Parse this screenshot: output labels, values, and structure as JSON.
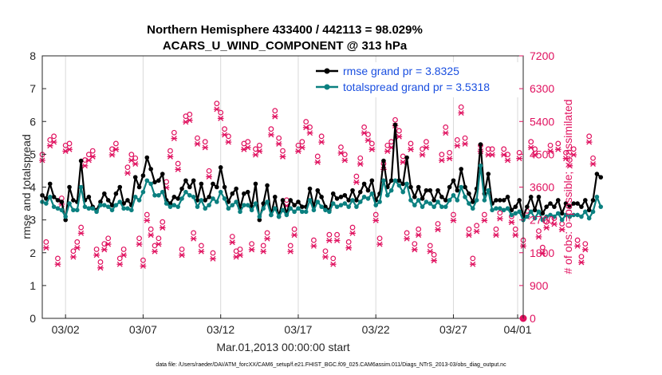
{
  "chart_data": {
    "type": "line",
    "title_line1": "Northern Hemisphere 433400 / 442113 = 98.029%",
    "title_line2": "ACARS_U_WIND_COMPONENT @ 313 hPa",
    "xlabel": "Mar.01,2013 00:00:00 start",
    "ylabel_left": "rmse and totalspread",
    "ylabel_right": "# of obs: o=possible; ×=assimilated",
    "footnote": "data file: /Users/raeder/DAI/ATM_forcXX/CAM6_setup/f.e21.FHIST_BGC.f09_025.CAM6assim.011/Diags_NTrS_2013-03/obs_diag_output.nc",
    "x_range_days": [
      0.5,
      31.5
    ],
    "x_ticks": [
      {
        "day": 2,
        "label": "03/02"
      },
      {
        "day": 7,
        "label": "03/07"
      },
      {
        "day": 12,
        "label": "03/12"
      },
      {
        "day": 17,
        "label": "03/17"
      },
      {
        "day": 22,
        "label": "03/22"
      },
      {
        "day": 27,
        "label": "03/27"
      },
      {
        "day": 32,
        "label": "04/01"
      }
    ],
    "ylim_left": [
      0,
      8
    ],
    "yticks_left": [
      "0",
      "1",
      "2",
      "3",
      "4",
      "5",
      "6",
      "7",
      "8"
    ],
    "ylim_right": [
      0,
      7200
    ],
    "yticks_right": [
      "0",
      "900",
      "1800",
      "2700",
      "3600",
      "4500",
      "5400",
      "6300",
      "7200"
    ],
    "series": [
      {
        "name": "rmse",
        "legend": "rmse grand pr = 3.8325",
        "color": "#000000",
        "x_start_day": 0.5,
        "x_step_day": 0.25,
        "values": [
          3.75,
          3.65,
          4.1,
          3.7,
          3.6,
          3.55,
          3.0,
          4.0,
          3.6,
          3.55,
          4.8,
          3.6,
          3.7,
          3.4,
          3.3,
          3.55,
          3.8,
          3.6,
          3.45,
          3.8,
          4.0,
          3.5,
          3.6,
          3.45,
          4.3,
          4.0,
          4.35,
          4.9,
          4.55,
          4.15,
          4.2,
          4.4,
          3.6,
          3.5,
          3.7,
          3.65,
          3.95,
          4.2,
          4.0,
          4.2,
          3.6,
          4.1,
          3.6,
          3.7,
          4.1,
          4.0,
          4.6,
          4.0,
          3.55,
          3.8,
          3.95,
          3.35,
          3.8,
          3.85,
          3.4,
          4.1,
          3.0,
          3.5,
          4.05,
          3.15,
          3.7,
          3.1,
          3.6,
          3.2,
          3.6,
          3.45,
          3.55,
          3.4,
          3.4,
          3.95,
          3.4,
          3.9,
          3.7,
          3.4,
          3.3,
          3.8,
          3.65,
          3.7,
          3.75,
          3.6,
          3.9,
          3.6,
          3.85,
          4.1,
          3.9,
          4.2,
          3.6,
          3.8,
          4.8,
          4.0,
          4.2,
          5.9,
          4.2,
          4.1,
          4.9,
          4.0,
          3.7,
          4.0,
          3.65,
          3.9,
          3.9,
          3.6,
          3.9,
          3.7,
          3.6,
          4.0,
          4.2,
          3.9,
          4.55,
          4.0,
          3.8,
          3.55,
          3.95,
          5.3,
          3.8,
          4.4,
          3.5,
          3.6,
          3.6,
          3.6,
          3.7,
          3.3,
          3.4,
          3.6,
          3.1,
          3.4,
          3.7,
          3.3,
          3.7,
          3.2,
          3.4,
          3.5,
          3.4,
          3.6,
          3.2,
          3.5,
          3.4,
          3.5,
          3.5,
          3.4,
          3.6,
          3.3,
          3.6,
          4.4,
          4.3
        ],
        "grand_value": 3.8325
      },
      {
        "name": "totalspread",
        "legend": "totalspread grand pr = 3.5318",
        "color": "#0b8080",
        "x_start_day": 0.5,
        "x_step_day": 0.25,
        "values": [
          3.55,
          3.5,
          3.7,
          3.4,
          3.35,
          3.3,
          3.1,
          3.5,
          3.3,
          3.3,
          4.0,
          3.4,
          3.35,
          3.35,
          3.25,
          3.45,
          3.45,
          3.4,
          3.3,
          3.45,
          3.55,
          3.35,
          3.35,
          3.3,
          3.7,
          3.6,
          3.85,
          4.2,
          4.1,
          3.75,
          3.75,
          3.85,
          3.5,
          3.4,
          3.45,
          3.4,
          3.65,
          3.85,
          3.75,
          3.7,
          3.4,
          3.6,
          3.35,
          3.45,
          3.65,
          3.55,
          3.85,
          3.65,
          3.35,
          3.45,
          3.55,
          3.25,
          3.45,
          3.45,
          3.3,
          3.5,
          3.1,
          3.35,
          3.55,
          3.15,
          3.35,
          3.1,
          3.3,
          3.15,
          3.35,
          3.25,
          3.35,
          3.25,
          3.25,
          3.6,
          3.3,
          3.55,
          3.4,
          3.3,
          3.25,
          3.5,
          3.4,
          3.45,
          3.5,
          3.4,
          3.6,
          3.4,
          3.55,
          3.7,
          3.65,
          3.8,
          3.45,
          3.55,
          4.2,
          3.75,
          3.9,
          4.2,
          4.05,
          3.85,
          4.1,
          3.6,
          3.45,
          3.6,
          3.4,
          3.55,
          3.5,
          3.4,
          3.55,
          3.4,
          3.4,
          3.6,
          3.75,
          3.6,
          4.0,
          3.7,
          3.5,
          3.35,
          3.6,
          4.65,
          3.6,
          3.9,
          3.3,
          3.35,
          3.35,
          3.3,
          3.35,
          3.15,
          3.2,
          3.25,
          3.0,
          3.1,
          3.25,
          3.05,
          3.25,
          3.0,
          3.1,
          3.15,
          3.1,
          3.2,
          3.0,
          3.15,
          3.1,
          3.15,
          3.15,
          3.1,
          3.25,
          3.05,
          3.25,
          3.7,
          3.4
        ],
        "grand_value": 3.5318
      }
    ],
    "obs_counts": {
      "color": "#e0115f",
      "x_start_day": 0.5,
      "x_step_day": 0.25,
      "possible": [
        4450,
        2050,
        4850,
        4950,
        1600,
        3250,
        4700,
        4750,
        1800,
        2050,
        2450,
        4300,
        4450,
        4550,
        1850,
        1500,
        2000,
        2150,
        4600,
        4750,
        1600,
        1850,
        4100,
        4450,
        4350,
        2150,
        1550,
        2800,
        2400,
        1950,
        2150,
        2600,
        3700,
        4550,
        5050,
        4200,
        1850,
        5500,
        5550,
        2300,
        4900,
        1950,
        4800,
        4000,
        1750,
        5850,
        5600,
        5150,
        4950,
        2200,
        1800,
        1850,
        4750,
        4800,
        2000,
        4600,
        4700,
        1950,
        2300,
        5150,
        5650,
        4900,
        4550,
        3200,
        1950,
        2400,
        4700,
        4800,
        5350,
        5200,
        2100,
        4400,
        4950,
        1800,
        2250,
        1600,
        2250,
        4650,
        4450,
        2050,
        2450,
        3850,
        4350,
        5200,
        5000,
        4750,
        2800,
        2150,
        4200,
        4700,
        4800,
        5400,
        5100,
        4400,
        2300,
        4750,
        2000,
        2400,
        4600,
        4800,
        1950,
        1700,
        2550,
        4450,
        5200,
        4500,
        2800,
        4850,
        5750,
        4900,
        2400,
        1600,
        2500,
        4700,
        2800,
        4600,
        4600,
        2400,
        2850,
        4600,
        4450,
        2750,
        2400,
        4500,
        2100,
        2900,
        4800,
        4600,
        2350,
        1900,
        2600,
        4700,
        2700,
        4750,
        2550,
        4500,
        4300,
        4600,
        2100,
        1650,
        2000,
        4950,
        4350
      ],
      "assimilated": [
        4400,
        2000,
        4800,
        4900,
        1550,
        3200,
        4650,
        4700,
        1750,
        2000,
        2400,
        4250,
        4400,
        4500,
        1800,
        1450,
        1950,
        2100,
        4550,
        4700,
        1550,
        1800,
        4050,
        4400,
        4300,
        2100,
        1500,
        2750,
        2350,
        1900,
        2100,
        2550,
        3650,
        4500,
        5000,
        4150,
        1800,
        5450,
        5500,
        2250,
        4850,
        1900,
        4750,
        3950,
        1700,
        5800,
        5550,
        5100,
        4900,
        2150,
        1750,
        1800,
        4700,
        4750,
        1950,
        4550,
        4650,
        1900,
        2250,
        5100,
        5600,
        4850,
        4500,
        3150,
        1900,
        2350,
        4650,
        4750,
        5300,
        5150,
        2050,
        4350,
        4900,
        1750,
        2200,
        1550,
        2200,
        4600,
        4400,
        2000,
        2400,
        3800,
        4300,
        5150,
        4950,
        4700,
        2750,
        2100,
        4150,
        4650,
        4750,
        5350,
        5050,
        4350,
        2250,
        4700,
        1950,
        2350,
        4550,
        4750,
        1900,
        1650,
        2500,
        4400,
        5150,
        4450,
        2750,
        4800,
        5700,
        4850,
        2350,
        1550,
        2450,
        4650,
        2750,
        4550,
        4550,
        2350,
        2800,
        4550,
        4400,
        2700,
        2350,
        4450,
        2050,
        2850,
        4750,
        4550,
        2300,
        1850,
        2550,
        4650,
        2650,
        4700,
        2500,
        4450,
        4250,
        4550,
        2050,
        1600,
        1950,
        4900,
        4300
      ]
    }
  }
}
